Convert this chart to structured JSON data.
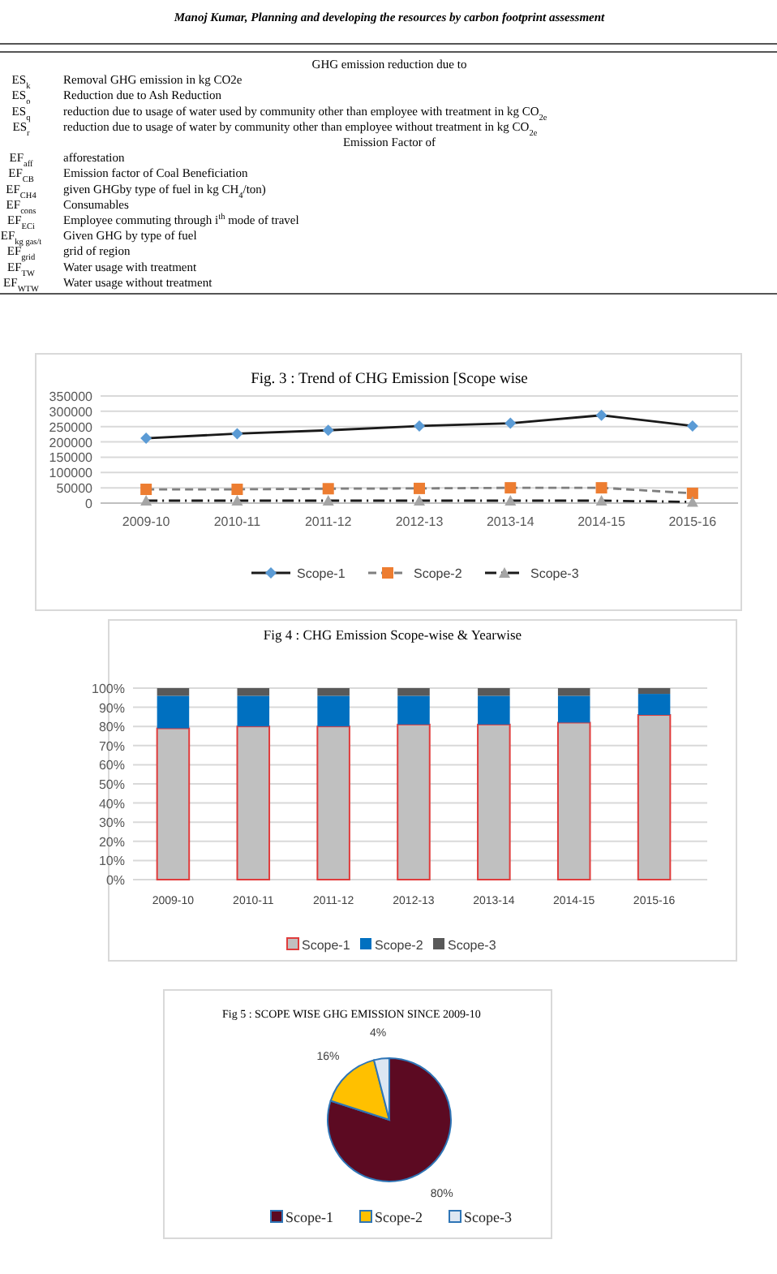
{
  "chart_data": [
    {
      "type": "other",
      "title": "Manoj Kumar, Planning and developing the resources by carbon footprint assessment",
      "annotations": [
        "GHG emission reduction due to",
        "ES$_{k}$\tRemoval GHG emission in kg CO2e",
        "ES$_{o}$\tReduction due to Ash Reduction",
        "ES$_{q}$\treduction due to usage of water used by community other than employee with treatment in  kg CO$_{2e}$",
        "ES$_{r}$\treduction due to usage of water by community other than employee without treatment in  kg CO$_{2e}$",
        "Emission Factor of",
        "EF$_{aff}$\tafforestation",
        "EF$_{CB}$\tEmission factor of Coal Beneficiation",
        "EF$_{CH4}$\tgiven GHGby type of fuel in kg CH$_{4}$/ton)",
        "EF$_{cons}$\tConsumables",
        "EF$_{ECi}$\tEmployee commuting through i$^{th}$ mode of travel",
        "EF$_{kg gas/t}$\tGiven GHG by type of fuel",
        "EF$_{grid}$\tgrid of region",
        "EF$_{TW}$\tWater usage with treatment",
        "EF$_{WTW}$\tWater usage without treatment"
      ]
    },
    {
      "type": "line",
      "title": "Fig. 3 : Trend of CHG Emission [Scope wise",
      "categories": [
        "2009-10",
        "2010-11",
        "2011-12",
        "2012-13",
        "2013-14",
        "2014-15",
        "2015-16"
      ],
      "series": [
        {
          "name": "Scope-1",
          "color": "#5b9bd5",
          "marker": "diamond",
          "line_style": "solid",
          "values": [
            212000,
            227000,
            238000,
            252000,
            261000,
            287000,
            252000
          ]
        },
        {
          "name": "Scope-2",
          "color": "#ed7d31",
          "marker": "square",
          "line_style": "dashed",
          "values": [
            45000,
            45000,
            47000,
            48000,
            50000,
            50000,
            32000
          ]
        },
        {
          "name": "Scope-3",
          "color": "#a5a5a5",
          "marker": "triangle",
          "line_style": "dashdot",
          "values": [
            8000,
            8000,
            8000,
            8000,
            8000,
            8000,
            4000
          ]
        }
      ],
      "ylim": [
        0,
        350000
      ],
      "yticks": [
        0,
        50000,
        100000,
        150000,
        200000,
        250000,
        300000,
        350000
      ],
      "grid": "y",
      "legend": "bottom"
    },
    {
      "type": "bar",
      "stacked": true,
      "title": "Fig 4 : CHG Emission Scope-wise & Yearwise",
      "categories": [
        "2009-10",
        "2010-11",
        "2011-12",
        "2012-13",
        "2013-14",
        "2014-15",
        "2015-16"
      ],
      "series": [
        {
          "name": "Scope-1",
          "color": "#c0c0c0",
          "values": [
            79,
            80,
            80,
            81,
            81,
            82,
            86
          ]
        },
        {
          "name": "Scope-2",
          "color": "#0070c0",
          "values": [
            17,
            16,
            16,
            15,
            15,
            14,
            11
          ]
        },
        {
          "name": "Scope-3",
          "color": "#595959",
          "values": [
            4,
            4,
            4,
            4,
            4,
            4,
            3
          ]
        }
      ],
      "ylim": [
        0,
        100
      ],
      "yticks": [
        {
          "value": 0,
          "label": "0%"
        },
        {
          "value": 10,
          "label": "10%"
        },
        {
          "value": 20,
          "label": "20%"
        },
        {
          "value": 30,
          "label": "30%"
        },
        {
          "value": 40,
          "label": "40%"
        },
        {
          "value": 50,
          "label": "50%"
        },
        {
          "value": 60,
          "label": "60%"
        },
        {
          "value": 70,
          "label": "70%"
        },
        {
          "value": 80,
          "label": "80%"
        },
        {
          "value": 90,
          "label": "90%"
        },
        {
          "value": 100,
          "label": "100%"
        }
      ],
      "grid": "y",
      "legend": "bottom"
    },
    {
      "type": "pie",
      "title": "Fig 5 : SCOPE WISE GHG EMISSION SINCE 2009-10",
      "categories": [
        "Scope-1",
        "Scope-2",
        "Scope-3"
      ],
      "values": [
        80,
        16,
        4
      ],
      "colors": [
        "#5c0a22",
        "#ffc000",
        "#dce6f2"
      ],
      "value_labels": [
        "80%",
        "16%",
        "4%"
      ],
      "legend": "bottom"
    }
  ]
}
